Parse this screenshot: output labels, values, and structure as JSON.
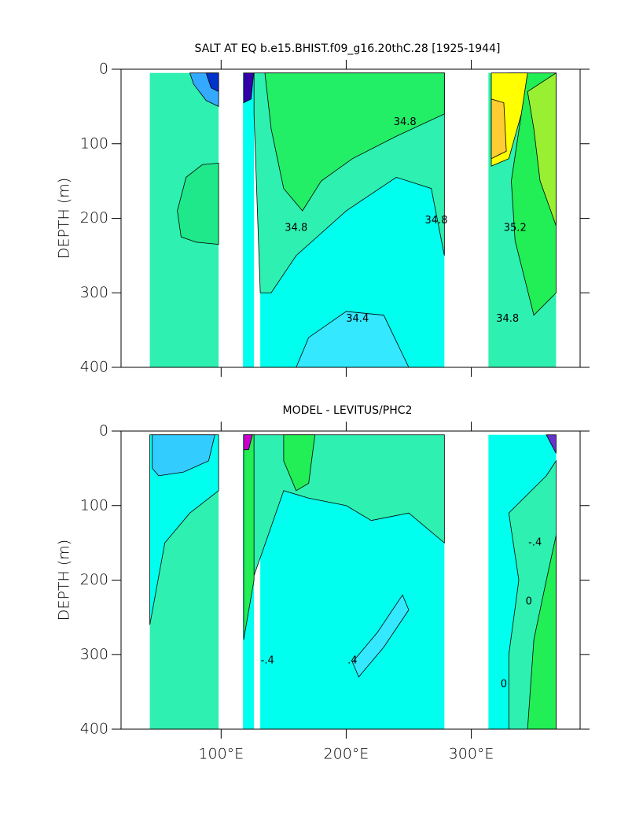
{
  "chart_data": [
    {
      "type": "contour",
      "title": "SALT AT EQ b.e15.BHIST.f09_g16.20thC.28 [1925-1944]",
      "ylabel": "DEPTH (m)",
      "xlim": [
        20,
        387
      ],
      "ylim": [
        400,
        0
      ],
      "xticks": [
        100,
        200,
        300
      ],
      "yticks": [
        0,
        100,
        200,
        300,
        400
      ],
      "columns": [
        {
          "x": [
            43,
            98
          ],
          "depth": [
            5,
            400
          ],
          "color": "#2ef0b0"
        },
        {
          "x": [
            117.5,
            126.3
          ],
          "depth": [
            5,
            400
          ],
          "color": "#00ffee"
        },
        {
          "x": [
            131.3,
            278.5
          ],
          "depth": [
            5,
            400
          ],
          "color": "#00ffee"
        },
        {
          "x": [
            313.7,
            367.8
          ],
          "depth": [
            5,
            400
          ],
          "color": "#2ef0b0"
        }
      ],
      "patches": [
        {
          "color": "#1ee88a",
          "points": [
            [
              65,
              190
            ],
            [
              72,
              145
            ],
            [
              85,
              128
            ],
            [
              98,
              126
            ],
            [
              98,
              235
            ],
            [
              80,
              232
            ],
            [
              68,
              225
            ]
          ]
        },
        {
          "color": "#33aaff",
          "points": [
            [
              75,
              5
            ],
            [
              98,
              5
            ],
            [
              98,
              50
            ],
            [
              88,
              42
            ],
            [
              78,
              20
            ]
          ]
        },
        {
          "color": "#0033cc",
          "points": [
            [
              88,
              5
            ],
            [
              98,
              5
            ],
            [
              98,
              30
            ],
            [
              92,
              25
            ]
          ]
        },
        {
          "color": "#2ef0b0",
          "points": [
            [
              126.3,
              5
            ],
            [
              278.5,
              5
            ],
            [
              278.5,
              250
            ],
            [
              268,
              160
            ],
            [
              240,
              145
            ],
            [
              200,
              190
            ],
            [
              160,
              250
            ],
            [
              140,
              300
            ],
            [
              131.3,
              300
            ],
            [
              126.3,
              60
            ]
          ]
        },
        {
          "color": "#22ee66",
          "points": [
            [
              135,
              5
            ],
            [
              278.5,
              5
            ],
            [
              278.5,
              60
            ],
            [
              240,
              90
            ],
            [
              205,
              120
            ],
            [
              180,
              150
            ],
            [
              165,
              190
            ],
            [
              150,
              160
            ],
            [
              140,
              80
            ]
          ]
        },
        {
          "color": "#33e8ff",
          "points": [
            [
              160,
              400
            ],
            [
              170,
              360
            ],
            [
              200,
              325
            ],
            [
              230,
              330
            ],
            [
              250,
              400
            ]
          ]
        },
        {
          "color": "#3300aa",
          "points": [
            [
              118,
              5
            ],
            [
              126,
              5
            ],
            [
              124,
              40
            ],
            [
              118,
              45
            ]
          ]
        },
        {
          "color": "#22ee55",
          "points": [
            [
              330,
              5
            ],
            [
              367.8,
              5
            ],
            [
              367.8,
              300
            ],
            [
              350,
              330
            ],
            [
              335,
              230
            ],
            [
              332,
              150
            ],
            [
              340,
              60
            ]
          ]
        },
        {
          "color": "#99f033",
          "points": [
            [
              345,
              30
            ],
            [
              367.8,
              5
            ],
            [
              367.8,
              210
            ],
            [
              355,
              150
            ],
            [
              350,
              80
            ]
          ]
        },
        {
          "color": "#ffff00",
          "points": [
            [
              316,
              5
            ],
            [
              345,
              5
            ],
            [
              340,
              60
            ],
            [
              330,
              120
            ],
            [
              316,
              130
            ]
          ]
        },
        {
          "color": "#ffcc33",
          "points": [
            [
              316,
              40
            ],
            [
              326,
              45
            ],
            [
              328,
              110
            ],
            [
              316,
              120
            ]
          ]
        }
      ],
      "contour_labels": [
        {
          "text": "34.8",
          "x": 247,
          "depth": 71
        },
        {
          "text": "34.8",
          "x": 160,
          "depth": 213
        },
        {
          "text": "34.8",
          "x": 272,
          "depth": 203
        },
        {
          "text": "34.4",
          "x": 209,
          "depth": 335
        },
        {
          "text": "35.2",
          "x": 335,
          "depth": 213
        },
        {
          "text": "34.8",
          "x": 329,
          "depth": 335
        }
      ]
    },
    {
      "type": "contour",
      "title": "MODEL - LEVITUS/PHC2",
      "ylabel": "DEPTH (m)",
      "xlim": [
        20,
        387
      ],
      "ylim": [
        400,
        0
      ],
      "xticks": [
        {
          "value": 100,
          "label": "100°E"
        },
        {
          "value": 200,
          "label": "200°E"
        },
        {
          "value": 300,
          "label": "300°E"
        }
      ],
      "yticks": [
        0,
        100,
        200,
        300,
        400
      ],
      "columns": [
        {
          "x": [
            43,
            98
          ],
          "depth": [
            5,
            400
          ],
          "color": "#2ef0b0"
        },
        {
          "x": [
            117.5,
            126.3
          ],
          "depth": [
            5,
            400
          ],
          "color": "#00ffee"
        },
        {
          "x": [
            131.3,
            278.5
          ],
          "depth": [
            5,
            400
          ],
          "color": "#00ffee"
        },
        {
          "x": [
            313.7,
            367.8
          ],
          "depth": [
            5,
            400
          ],
          "color": "#00ffee"
        }
      ],
      "patches": [
        {
          "color": "#00ffee",
          "points": [
            [
              43,
              5
            ],
            [
              98,
              5
            ],
            [
              98,
              80
            ],
            [
              75,
              110
            ],
            [
              55,
              150
            ],
            [
              43,
              260
            ]
          ]
        },
        {
          "color": "#33ccff",
          "points": [
            [
              45,
              5
            ],
            [
              95,
              5
            ],
            [
              90,
              40
            ],
            [
              70,
              55
            ],
            [
              50,
              60
            ],
            [
              45,
              50
            ]
          ]
        },
        {
          "color": "#2ef0b0",
          "points": [
            [
              118,
              5
            ],
            [
              278.5,
              5
            ],
            [
              278.5,
              150
            ],
            [
              250,
              110
            ],
            [
              220,
              120
            ],
            [
              200,
              100
            ],
            [
              170,
              90
            ],
            [
              150,
              80
            ],
            [
              131.3,
              170
            ],
            [
              125,
              200
            ],
            [
              118,
              260
            ]
          ]
        },
        {
          "color": "#22ee55",
          "points": [
            [
              118,
              5
            ],
            [
              126.3,
              5
            ],
            [
              126.3,
              200
            ],
            [
              118,
              280
            ]
          ]
        },
        {
          "color": "#22ee55",
          "points": [
            [
              150,
              5
            ],
            [
              175,
              5
            ],
            [
              170,
              70
            ],
            [
              160,
              80
            ],
            [
              150,
              40
            ]
          ]
        },
        {
          "color": "#33e8ff",
          "points": [
            [
              205,
              310
            ],
            [
              225,
              270
            ],
            [
              245,
              220
            ],
            [
              250,
              240
            ],
            [
              230,
              290
            ],
            [
              210,
              330
            ]
          ]
        },
        {
          "color": "#cc00cc",
          "points": [
            [
              118,
              5
            ],
            [
              125,
              5
            ],
            [
              122,
              25
            ],
            [
              118,
              25
            ]
          ]
        },
        {
          "color": "#2ef0b0",
          "points": [
            [
              330,
              110
            ],
            [
              360,
              60
            ],
            [
              367.8,
              40
            ],
            [
              367.8,
              400
            ],
            [
              330,
              400
            ],
            [
              330,
              300
            ],
            [
              338,
              200
            ]
          ]
        },
        {
          "color": "#22ee55",
          "points": [
            [
              350,
              280
            ],
            [
              360,
              200
            ],
            [
              367.8,
              140
            ],
            [
              367.8,
              400
            ],
            [
              345,
              400
            ]
          ]
        },
        {
          "color": "#6633cc",
          "points": [
            [
              360,
              5
            ],
            [
              367.8,
              5
            ],
            [
              367.8,
              30
            ]
          ]
        }
      ],
      "contour_labels": [
        {
          "text": "-.4",
          "x": 351,
          "depth": 150
        },
        {
          "text": "-.4",
          "x": 137,
          "depth": 308
        },
        {
          "text": ".4",
          "x": 205,
          "depth": 308
        },
        {
          "text": "0",
          "x": 326,
          "depth": 340
        },
        {
          "text": "0",
          "x": 346,
          "depth": 229
        }
      ]
    }
  ]
}
